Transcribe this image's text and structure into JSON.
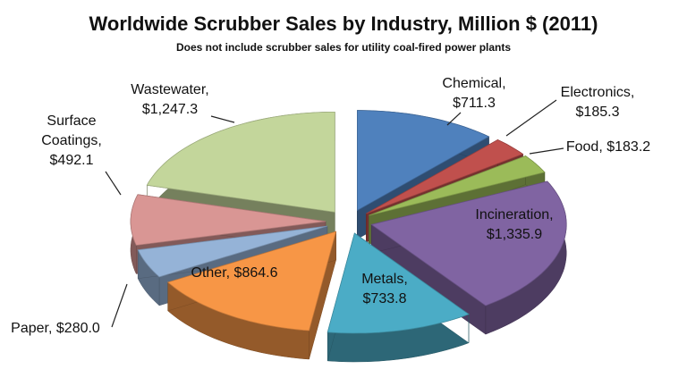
{
  "chart_data": {
    "type": "pie",
    "title": "Worldwide Scrubber Sales by Industry, Million $ (2011)",
    "subtitle": "Does not include scrubber sales for utility coal-fired power plants",
    "categories": [
      "Chemical,",
      "Electronics,",
      "Food,",
      "Incineration,",
      "Metals,",
      "Other,",
      "Paper,",
      "Surface Coatings,",
      "Wastewater,"
    ],
    "values": [
      711.3,
      185.3,
      183.2,
      1335.9,
      733.8,
      864.6,
      280.0,
      492.1,
      1247.3
    ],
    "value_labels": [
      "$711.3",
      "$185.3",
      "$183.2",
      "$1,335.9",
      "$733.8",
      "$864.6",
      "$280.0",
      "$492.1",
      "$1,247.3"
    ],
    "colors": [
      "#4f81bd",
      "#c0504d",
      "#9bbb59",
      "#8064a2",
      "#4bacc6",
      "#f79646",
      "#95b3d7",
      "#d99694",
      "#c3d69b"
    ]
  }
}
